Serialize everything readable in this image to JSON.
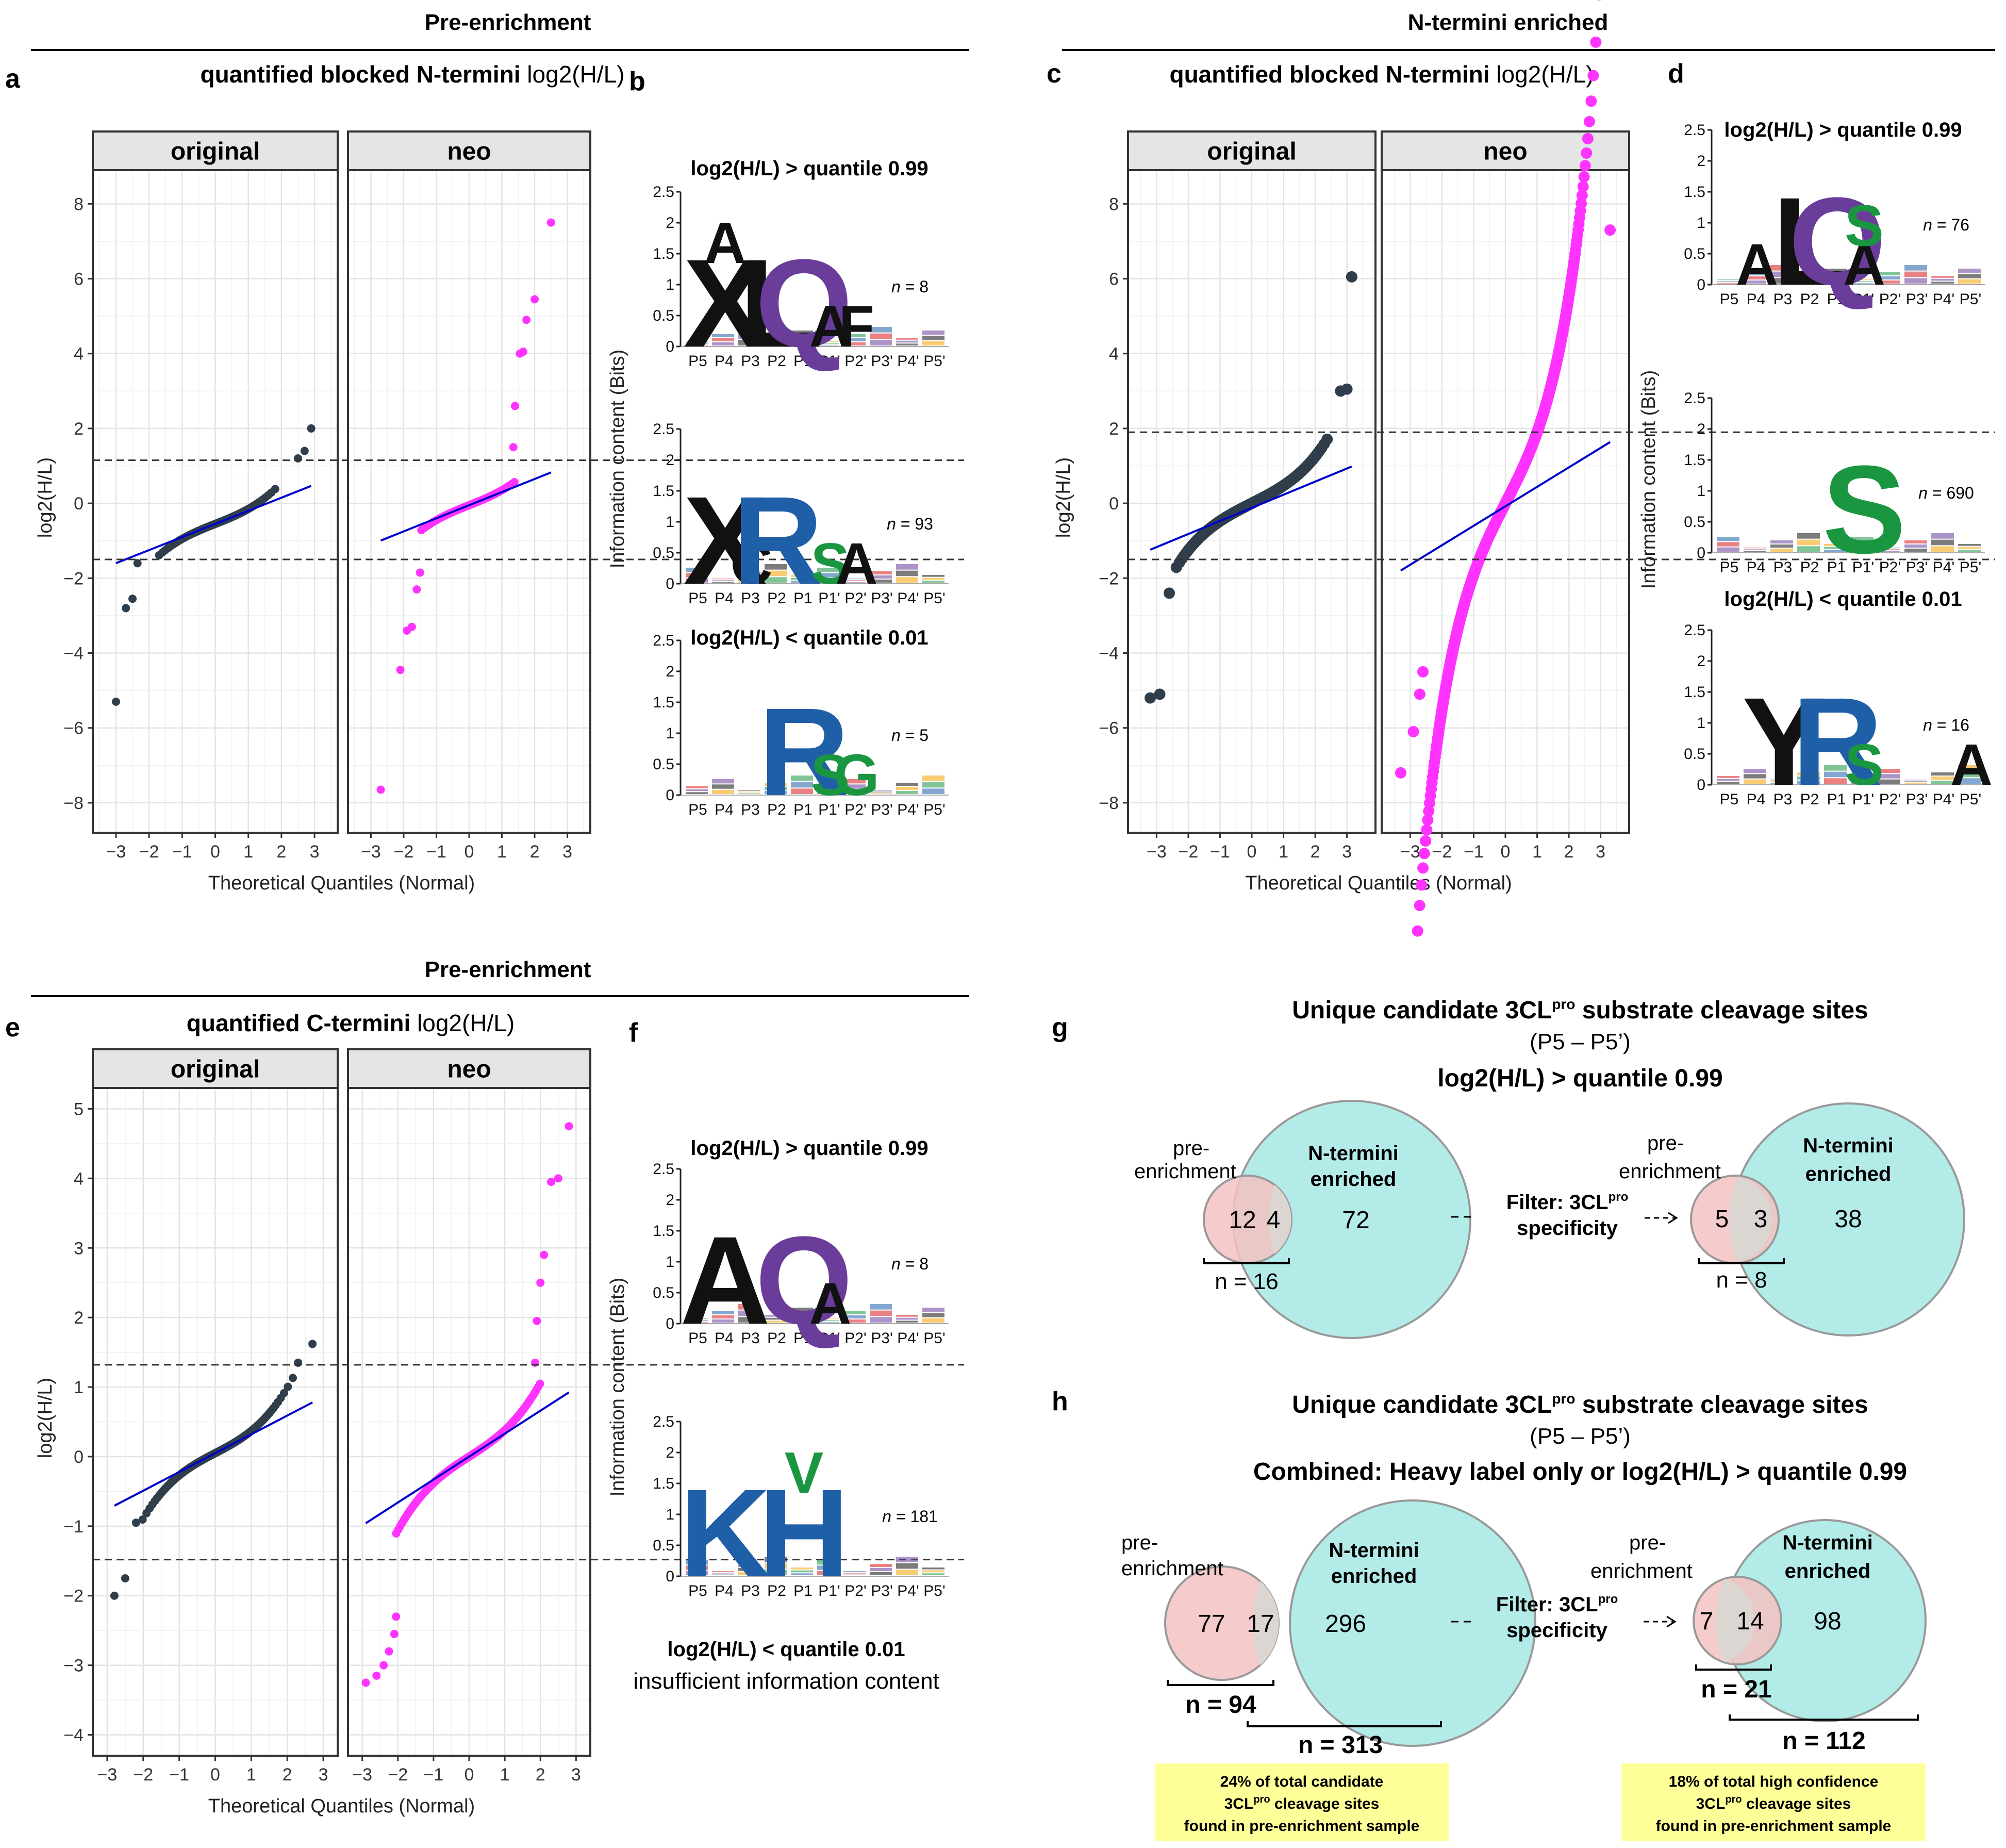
{
  "headers": {
    "top_left": "Pre-enrichment",
    "top_right": "N-termini enriched",
    "bottom_left": "Pre-enrichment"
  },
  "panel_letters": {
    "a": "a",
    "b": "b",
    "c": "c",
    "d": "d",
    "e": "e",
    "f": "f",
    "g": "g",
    "h": "h"
  },
  "qq_strips": {
    "original": "original",
    "neo": "neo"
  },
  "chart_data": [
    {
      "id": "a",
      "type": "scatter",
      "title_bold": "quantified blocked N-termini",
      "title_rest": "log2(H/L)",
      "xlabel": "Theoretical Quantiles (Normal)",
      "ylabel": "log2(H/L)",
      "xlim": [
        -3.7,
        3.7
      ],
      "ylim": [
        -8.8,
        8.9
      ],
      "xticks": [
        "−3",
        "−2",
        "−1",
        "0",
        "1",
        "2",
        "3"
      ],
      "yticks": [
        "−8",
        "−6",
        "−4",
        "−2",
        "0",
        "2",
        "4",
        "6",
        "8"
      ],
      "hlines": [
        1.15,
        -1.5
      ],
      "series": [
        {
          "name": "original",
          "color": "#2f3e4a",
          "n": 100,
          "line": [
            -0.55,
            0.35
          ],
          "tail_low": [
            [
              -3,
              -5.3
            ],
            [
              -2.7,
              -2.8
            ],
            [
              -2.5,
              -2.55
            ],
            [
              -2.35,
              -1.6
            ]
          ],
          "tail_high": [
            [
              2.5,
              1.2
            ],
            [
              2.7,
              1.4
            ],
            [
              2.9,
              2.0
            ]
          ]
        },
        {
          "name": "neo",
          "color": "#ff33ff",
          "n": 90,
          "line": [
            -0.05,
            0.35
          ],
          "tail_low": [
            [
              -2.7,
              -7.65
            ],
            [
              -2.1,
              -4.45
            ],
            [
              -1.9,
              -3.4
            ],
            [
              -1.75,
              -3.3
            ],
            [
              -1.6,
              -2.3
            ],
            [
              -1.5,
              -1.85
            ]
          ],
          "tail_high": [
            [
              1.35,
              1.5
            ],
            [
              1.4,
              2.6
            ],
            [
              1.55,
              4.0
            ],
            [
              1.65,
              4.05
            ],
            [
              1.75,
              4.9
            ],
            [
              2.0,
              5.45
            ],
            [
              2.5,
              7.5
            ]
          ]
        }
      ]
    },
    {
      "id": "c",
      "type": "scatter",
      "title_bold": "quantified blocked N-termini",
      "title_rest": "log2(H/L)",
      "xlabel": "Theoretical Quantiles (Normal)",
      "ylabel": "log2(H/L)",
      "xlim": [
        -3.9,
        3.9
      ],
      "ylim": [
        -8.8,
        8.9
      ],
      "xticks": [
        "−3",
        "−2",
        "−1",
        "0",
        "1",
        "2",
        "3"
      ],
      "yticks": [
        "−8",
        "−6",
        "−4",
        "−2",
        "0",
        "2",
        "4",
        "6",
        "8"
      ],
      "hlines": [
        1.9,
        -1.5
      ],
      "series": [
        {
          "name": "original",
          "color": "#2f3e4a",
          "n": 400,
          "line": [
            -0.12,
            0.35
          ],
          "tail_low": [
            [
              -3.2,
              -5.2
            ],
            [
              -2.9,
              -5.1
            ],
            [
              -2.6,
              -2.4
            ]
          ],
          "tail_high": [
            [
              2.8,
              3.0
            ],
            [
              3.0,
              3.05
            ],
            [
              3.15,
              6.05
            ]
          ]
        },
        {
          "name": "neo",
          "color": "#ff33ff",
          "n": 1600,
          "line": [
            -0.08,
            0.52
          ],
          "tail_low": [
            [
              -3.3,
              -7.2
            ],
            [
              -2.9,
              -6.1
            ],
            [
              -2.7,
              -5.1
            ],
            [
              -2.6,
              -4.5
            ]
          ],
          "tail_high": [
            [
              3.3,
              7.3
            ]
          ]
        }
      ]
    },
    {
      "id": "e",
      "type": "scatter",
      "title_bold": "quantified C-termini",
      "title_rest": "log2(H/L)",
      "xlabel": "Theoretical Quantiles (Normal)",
      "ylabel": "log2(H/L)",
      "xlim": [
        -3.4,
        3.4
      ],
      "ylim": [
        -4.3,
        5.3
      ],
      "xticks": [
        "−3",
        "−2",
        "−1",
        "0",
        "1",
        "2",
        "3"
      ],
      "yticks": [
        "−4",
        "−3",
        "−2",
        "−1",
        "0",
        "1",
        "2",
        "3",
        "4",
        "5"
      ],
      "hlines": [
        1.32,
        -1.48
      ],
      "series": [
        {
          "name": "original",
          "color": "#2f3e4a",
          "n": 160,
          "line": [
            0.05,
            0.27
          ],
          "tail_low": [
            [
              -2.8,
              -2.0
            ],
            [
              -2.5,
              -1.75
            ],
            [
              -2.2,
              -0.95
            ]
          ],
          "tail_high": [
            [
              2.3,
              1.35
            ],
            [
              2.7,
              1.62
            ]
          ]
        },
        {
          "name": "neo",
          "color": "#ff33ff",
          "n": 320,
          "line": [
            0.0,
            0.33
          ],
          "tail_low": [
            [
              -2.9,
              -3.25
            ],
            [
              -2.6,
              -3.15
            ],
            [
              -2.4,
              -3.0
            ],
            [
              -2.25,
              -2.8
            ],
            [
              -2.1,
              -2.55
            ],
            [
              -2.05,
              -2.3
            ]
          ],
          "tail_high": [
            [
              1.85,
              1.35
            ],
            [
              1.9,
              1.95
            ],
            [
              2.0,
              2.5
            ],
            [
              2.1,
              2.9
            ],
            [
              2.3,
              3.95
            ],
            [
              2.5,
              4.0
            ],
            [
              2.8,
              4.75
            ]
          ]
        }
      ]
    }
  ],
  "logos": {
    "bits_label": "Information content (Bits)",
    "positions": [
      "P5",
      "P4",
      "P3",
      "P2",
      "P1",
      "P1'",
      "P2'",
      "P3'",
      "P4'",
      "P5'"
    ],
    "yticks": [
      "0",
      "0.5",
      "1",
      "1.5",
      "2",
      "2.5"
    ],
    "b": [
      {
        "title": "log2(H/L) > quantile 0.99",
        "n_prefix": "n",
        "n": "= 8",
        "letters": [
          [
            "P4",
            "X",
            "#111"
          ],
          [
            "P4",
            "A",
            "#111"
          ],
          [
            "P2",
            "L",
            "#111"
          ],
          [
            "P1",
            "Q",
            "#6a3d9a"
          ],
          [
            "P1'",
            "A",
            "#111"
          ],
          [
            "P2'",
            "F",
            "#111"
          ]
        ]
      },
      {
        "title": "",
        "n_prefix": "n",
        "n": "= 93",
        "letters": [
          [
            "P4",
            "X",
            "#111"
          ],
          [
            "P3",
            "C",
            "#111"
          ],
          [
            "P2",
            "R",
            "#1f5fa8"
          ],
          [
            "P1'",
            "S",
            "#1a9641"
          ],
          [
            "P2'",
            "A",
            "#111"
          ]
        ]
      },
      {
        "title": "log2(H/L) < quantile 0.01",
        "n_prefix": "n",
        "n": "= 5",
        "letters": [
          [
            "P1",
            "R",
            "#1f5fa8"
          ],
          [
            "P1'",
            "S",
            "#1a9641"
          ],
          [
            "P2'",
            "G",
            "#1a9641"
          ]
        ]
      }
    ],
    "d": [
      {
        "title": "log2(H/L) > quantile 0.99",
        "n_prefix": "n",
        "n": "= 76",
        "letters": [
          [
            "P2",
            "L",
            "#111"
          ],
          [
            "P1",
            "Q",
            "#6a3d9a"
          ],
          [
            "P1'",
            "A",
            "#111"
          ],
          [
            "P1'",
            "S",
            "#1a9641"
          ],
          [
            "P4",
            "A",
            "#111"
          ]
        ]
      },
      {
        "title": "",
        "n_prefix": "n",
        "n": "= 690",
        "letters": [
          [
            "P1'",
            "S",
            "#1a9641"
          ]
        ]
      },
      {
        "title": "log2(H/L) < quantile 0.01",
        "n_prefix": "n",
        "n": "= 16",
        "letters": [
          [
            "P3",
            "Y",
            "#111"
          ],
          [
            "P1",
            "R",
            "#1f5fa8"
          ],
          [
            "P1'",
            "S",
            "#1a9641"
          ],
          [
            "P5'",
            "A",
            "#111"
          ]
        ]
      }
    ],
    "f": [
      {
        "title": "log2(H/L) > quantile 0.99",
        "n_prefix": "n",
        "n": "= 8",
        "letters": [
          [
            "P4",
            "A",
            "#111"
          ],
          [
            "P1",
            "Q",
            "#6a3d9a"
          ],
          [
            "P1'",
            "A",
            "#111"
          ]
        ]
      },
      {
        "title": "",
        "n_prefix": "n",
        "n": "= 181",
        "letters": [
          [
            "P4",
            "K",
            "#1f5fa8"
          ],
          [
            "P1",
            "H",
            "#1f5fa8"
          ],
          [
            "P1",
            "V",
            "#1a9641"
          ]
        ]
      }
    ],
    "f_low_title": "log2(H/L) < quantile 0.01",
    "f_low_note": "insufficient information content"
  },
  "venn_g": {
    "title_prefix": "Unique candidate 3CL",
    "title_sup": "pro",
    "title_suffix": " substrate cleavage sites",
    "range": "(P5 – P5’)",
    "subtitle": "log2(H/L) > quantile 0.99",
    "pre_label": "pre-",
    "pre_label2": "enrichment",
    "nterm_label": "N-termini",
    "nterm_label2": "enriched",
    "left": {
      "pre_only": "12",
      "overlap": "4",
      "nterm_only": "72",
      "n_pre": "n = 16"
    },
    "filter": "Filter: 3CL",
    "filter_sup": "pro",
    "filter2": "specificity",
    "right": {
      "pre_only": "5",
      "overlap": "3",
      "nterm_only": "38",
      "n_pre": "n = 8"
    }
  },
  "venn_h": {
    "title_prefix": "Unique candidate 3CL",
    "title_sup": "pro",
    "title_suffix": " substrate cleavage sites",
    "range": "(P5 – P5’)",
    "subtitle": "Combined: Heavy label only or log2(H/L) > quantile 0.99",
    "left": {
      "pre_only": "77",
      "overlap": "17",
      "nterm_only": "296",
      "n_pre": "n = 94",
      "n_nterm": "n = 313"
    },
    "right": {
      "pre_only": "7",
      "overlap": "14",
      "nterm_only": "98",
      "n_pre": "n = 21",
      "n_nterm": "n = 112"
    },
    "note_left": [
      "24% of total candidate",
      "3CL",
      "pro",
      " cleavage sites",
      "found in pre-enrichment sample"
    ],
    "note_right": [
      "18% of total high confidence",
      "3CL",
      "pro",
      " cleavage sites",
      "found in pre-enrichment sample"
    ],
    "note_color": "#ffff99"
  },
  "colors": {
    "original": "#2f3e4a",
    "neo": "#ff33ff",
    "fit": "#0000cc",
    "pre": "#f4c2c2",
    "nterm": "#b3ebe9"
  }
}
